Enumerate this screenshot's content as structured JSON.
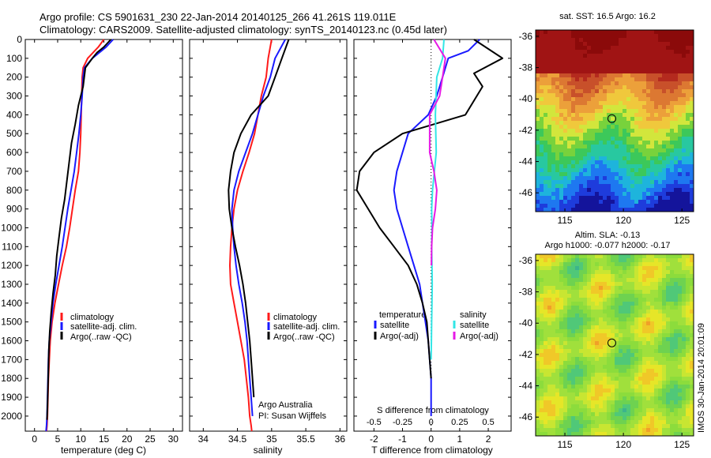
{
  "header": {
    "line1": "Argo profile: CS 5901631_230 22-Jan-2014 20140125_266 41.261S 119.011E",
    "line2": "Climatology: CARS2009. Satellite-adjusted climatology: synTS_20140123.nc (0.45d later)"
  },
  "colors": {
    "climatology": "#ff1a1a",
    "satellite": "#1a1aff",
    "argo": "#000000",
    "satellite_salinity": "#33e6e6",
    "argo_salinity_diff": "#e61ae6"
  },
  "chart_data": [
    {
      "type": "line",
      "id": "temperature",
      "xlabel": "temperature (deg C)",
      "xlim": [
        -2,
        32
      ],
      "xticks": [
        0,
        5,
        10,
        15,
        20,
        25,
        30
      ],
      "ylim": [
        2080,
        0
      ],
      "yticks": [
        0,
        100,
        200,
        300,
        400,
        500,
        600,
        700,
        800,
        900,
        1000,
        1100,
        1200,
        1300,
        1400,
        1500,
        1600,
        1700,
        1800,
        1900,
        2000
      ],
      "legend": [
        "climatology",
        "satellite-adj. clim.",
        "Argo(..raw -QC)"
      ],
      "series": [
        {
          "name": "climatology",
          "color": "#ff1a1a",
          "x": [
            15.0,
            13.8,
            11.5,
            10.5,
            10.3,
            10.2,
            10.1,
            10.0,
            9.8,
            9.5,
            8.8,
            8.2,
            7.6,
            6.9,
            6.0,
            5.2,
            4.4,
            3.8,
            3.4,
            3.2,
            3.0,
            2.9,
            2.8,
            2.7,
            2.6
          ],
          "y": [
            0,
            40,
            100,
            150,
            200,
            300,
            400,
            500,
            600,
            700,
            800,
            900,
            1000,
            1100,
            1200,
            1300,
            1400,
            1500,
            1600,
            1700,
            1800,
            1900,
            2000,
            2050,
            2080
          ]
        },
        {
          "name": "satellite-adj. clim.",
          "color": "#1a1aff",
          "x": [
            17.0,
            15.5,
            12.5,
            10.8,
            10.5,
            10.3,
            10.0,
            9.6,
            9.1,
            8.6,
            7.9,
            7.2,
            6.6,
            6.0,
            5.3,
            4.6,
            4.0,
            3.6,
            3.2,
            3.0,
            2.9,
            2.8,
            2.7,
            2.6,
            2.5
          ],
          "y": [
            0,
            40,
            100,
            150,
            200,
            300,
            400,
            500,
            600,
            700,
            800,
            900,
            1000,
            1100,
            1200,
            1300,
            1400,
            1500,
            1600,
            1700,
            1800,
            1900,
            2000,
            2050,
            2080
          ]
        },
        {
          "name": "Argo(..raw -QC)",
          "color": "#000000",
          "x": [
            16.5,
            15.0,
            13.5,
            12.5,
            11.0,
            10.5,
            9.5,
            8.8,
            8.0,
            7.5,
            7.0,
            6.5,
            5.8,
            5.3,
            4.8,
            4.5,
            4.0,
            3.6,
            3.3,
            3.1,
            3.0,
            2.9,
            2.8,
            2.7
          ],
          "y": [
            0,
            40,
            70,
            100,
            150,
            250,
            350,
            450,
            550,
            650,
            750,
            850,
            950,
            1050,
            1150,
            1250,
            1350,
            1450,
            1550,
            1650,
            1750,
            1850,
            1950,
            2020
          ]
        }
      ]
    },
    {
      "type": "line",
      "id": "salinity",
      "xlabel": "salinity",
      "xlim": [
        33.8,
        36.1
      ],
      "xticks": [
        34,
        34.5,
        35,
        35.5,
        36
      ],
      "ylim": [
        2080,
        0
      ],
      "legend": [
        "climatology",
        "satellite-adj. clim.",
        "Argo(..raw -QC)"
      ],
      "series": [
        {
          "name": "climatology",
          "color": "#ff1a1a",
          "x": [
            35.0,
            34.95,
            34.92,
            34.85,
            34.8,
            34.75,
            34.67,
            34.58,
            34.5,
            34.45,
            34.42,
            34.4,
            34.39,
            34.4,
            34.45,
            34.5,
            34.55,
            34.6,
            34.63,
            34.66,
            34.68,
            34.7,
            34.71
          ],
          "y": [
            0,
            100,
            200,
            300,
            400,
            500,
            600,
            700,
            800,
            900,
            1000,
            1100,
            1200,
            1300,
            1400,
            1500,
            1600,
            1700,
            1800,
            1900,
            2000,
            2050,
            2080
          ]
        },
        {
          "name": "satellite-adj. clim.",
          "color": "#1a1aff",
          "x": [
            35.2,
            35.05,
            34.98,
            34.88,
            34.8,
            34.72,
            34.62,
            34.52,
            34.45,
            34.42,
            34.43,
            34.45,
            34.48,
            34.52,
            34.57,
            34.61,
            34.64,
            34.66,
            34.68,
            34.7,
            34.72
          ],
          "y": [
            0,
            100,
            200,
            300,
            400,
            500,
            600,
            700,
            800,
            900,
            1000,
            1100,
            1200,
            1300,
            1400,
            1500,
            1600,
            1700,
            1800,
            1900,
            2000
          ]
        },
        {
          "name": "Argo(..raw -QC)",
          "color": "#000000",
          "x": [
            35.25,
            35.15,
            35.05,
            34.95,
            34.7,
            34.55,
            34.45,
            34.4,
            34.37,
            34.38,
            34.42,
            34.47,
            34.53,
            34.58,
            34.62,
            34.65,
            34.68,
            34.7,
            34.72,
            34.74
          ],
          "y": [
            0,
            100,
            200,
            300,
            400,
            500,
            600,
            700,
            800,
            900,
            1000,
            1100,
            1200,
            1300,
            1400,
            1500,
            1600,
            1700,
            1800,
            1900
          ]
        }
      ]
    },
    {
      "type": "line",
      "id": "difference",
      "xlabel": "T difference from climatology",
      "xlabel_top": "S difference from climatology",
      "xlim": [
        -2.7,
        2.8
      ],
      "xticks": [
        -2,
        -1,
        0,
        1,
        2
      ],
      "xticks_top": [
        "-0.5",
        "-0.25",
        "0",
        "0.25",
        "0.5"
      ],
      "ylim": [
        2080,
        0
      ],
      "legend_left_title": "temperature",
      "legend_right_title": "salinity",
      "legend": [
        "satellite",
        "Argo(-adj)",
        "satellite",
        "Argo(-adj)"
      ],
      "series": [
        {
          "name": "temperature satellite",
          "color": "#1a1aff",
          "x": [
            1.7,
            1.3,
            0.6,
            0.4,
            0.2,
            -0.1,
            -0.8,
            -1.0,
            -1.2,
            -1.3,
            -1.2,
            -1.0,
            -0.8,
            -0.6,
            -0.4,
            -0.3,
            -0.2,
            -0.1,
            -0.05,
            0,
            0
          ],
          "y": [
            0,
            60,
            100,
            200,
            300,
            400,
            500,
            600,
            700,
            800,
            900,
            1000,
            1100,
            1200,
            1300,
            1400,
            1500,
            1600,
            1700,
            1800,
            2000
          ]
        },
        {
          "name": "temperature Argo(-adj)",
          "color": "#000000",
          "x": [
            1.5,
            2.5,
            1.5,
            1.8,
            1.2,
            -1.0,
            -2.0,
            -2.5,
            -2.6,
            -2.2,
            -1.8,
            -1.3,
            -0.8,
            -0.5,
            -0.3,
            -0.15,
            -0.1,
            -0.05,
            0
          ],
          "y": [
            0,
            100,
            180,
            250,
            400,
            500,
            600,
            700,
            800,
            900,
            1000,
            1100,
            1200,
            1300,
            1400,
            1500,
            1600,
            1700,
            1800
          ]
        },
        {
          "name": "salinity satellite",
          "color": "#33e6e6",
          "x": [
            0.45,
            0.4,
            0.2,
            0.15,
            0.18,
            0.05,
            0.02,
            0.03,
            0.02,
            0.03,
            0.04,
            0.03,
            0.02,
            0.01,
            0.0
          ],
          "y": [
            0,
            100,
            200,
            400,
            600,
            800,
            900,
            1000,
            1100,
            1200,
            1300,
            1400,
            1500,
            1600,
            1700
          ]
        },
        {
          "name": "salinity Argo(-adj)",
          "color": "#e61ae6",
          "x": [
            0.1,
            0.5,
            0.4,
            0.3,
            -0.05,
            -0.05,
            0.1,
            0.2,
            0.15,
            0.05,
            0.02,
            0.01
          ],
          "y": [
            0,
            100,
            200,
            300,
            400,
            600,
            700,
            800,
            900,
            1000,
            1100,
            1200
          ]
        }
      ]
    },
    {
      "type": "heatmap",
      "id": "sst-map",
      "title": "sat. SST: 16.5  Argo: 16.2",
      "xticks": [
        115,
        120,
        125
      ],
      "yticks": [
        -36,
        -38,
        -40,
        -42,
        -44,
        -46
      ],
      "xlim": [
        112.5,
        126
      ],
      "ylim": [
        -47.2,
        -35.6
      ],
      "marker": {
        "lon": 119.011,
        "lat": -41.261
      }
    },
    {
      "type": "heatmap",
      "id": "sla-map",
      "title_line1": "Altim. SLA: -0.13",
      "title_line2": "Argo h1000: -0.077  h2000: -0.17",
      "xticks": [
        115,
        120,
        125
      ],
      "yticks": [
        -36,
        -38,
        -40,
        -42,
        -44,
        -46
      ],
      "xlim": [
        112.5,
        126
      ],
      "ylim": [
        -47.2,
        -35.6
      ],
      "marker": {
        "lon": 119.011,
        "lat": -41.261
      }
    }
  ],
  "sidebar": {
    "stamp": "IMOS 30-Jan-2014 20:01:09"
  },
  "annotations": {
    "argo_australia": "Argo Australia",
    "pi": "PI: Susan Wijffels"
  }
}
